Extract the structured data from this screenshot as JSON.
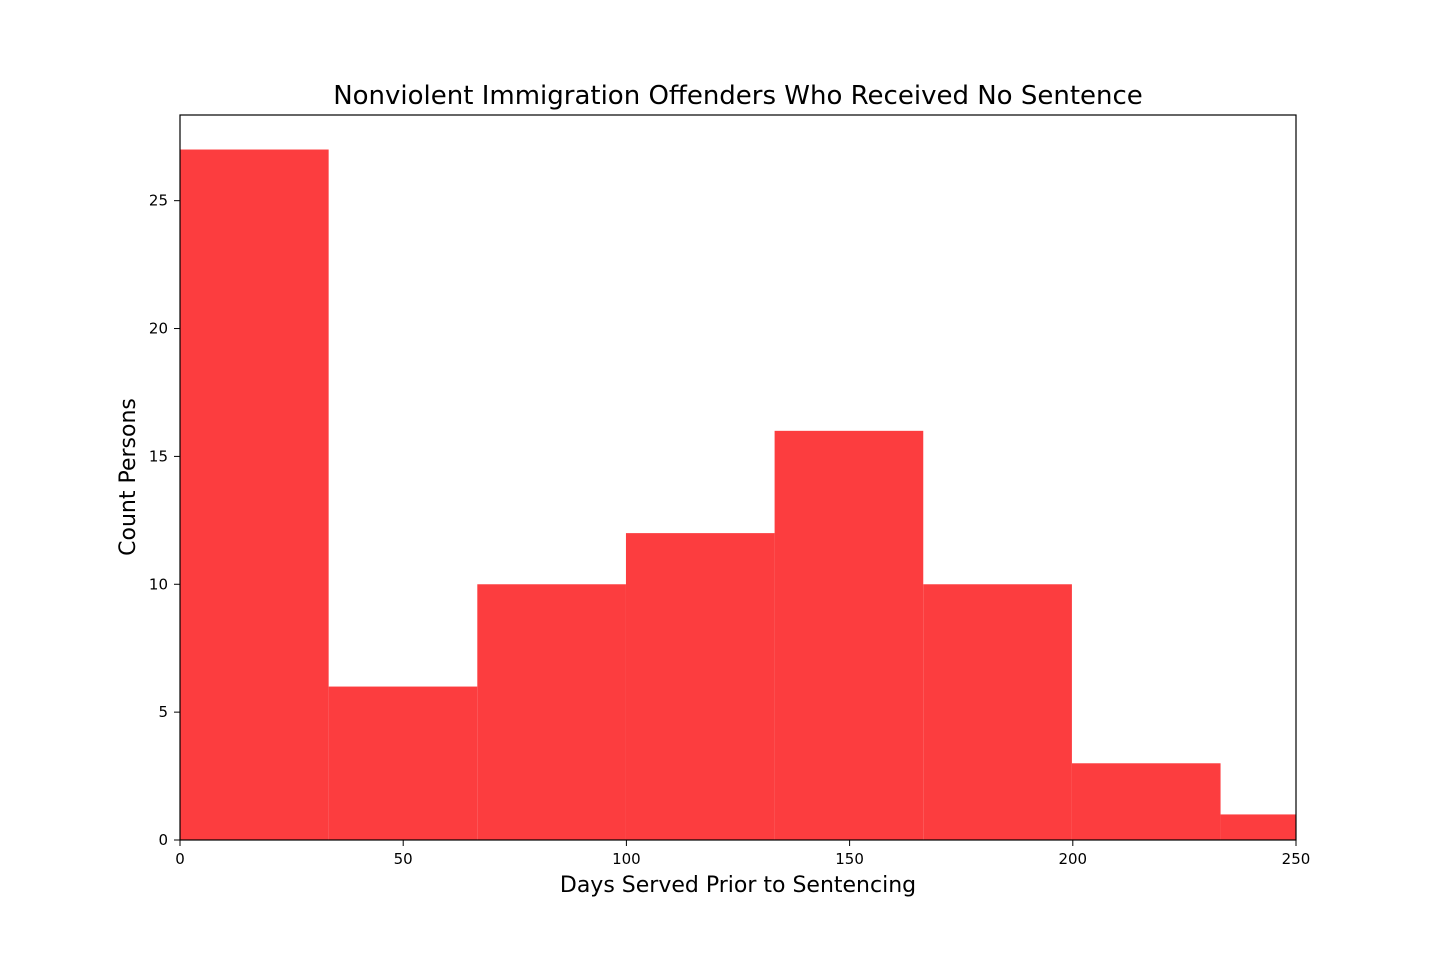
{
  "chart_data": {
    "type": "bar",
    "subtype": "histogram",
    "title": "Nonviolent Immigration Offenders Who Received No Sentence",
    "xlabel": "Days Served Prior to Sentencing",
    "ylabel": "Count Persons",
    "xlim": [
      0,
      250
    ],
    "ylim": [
      0,
      28.35
    ],
    "xticks": [
      0,
      50,
      100,
      150,
      200,
      250
    ],
    "yticks": [
      0,
      5,
      10,
      15,
      20,
      25
    ],
    "bin_edges": [
      0,
      33.3,
      66.6,
      99.9,
      133.2,
      166.5,
      199.8,
      233.1,
      266.4
    ],
    "values": [
      27,
      6,
      10,
      12,
      16,
      10,
      3,
      1
    ],
    "bar_color": "#fc3d3f",
    "grid": false,
    "legend": "none"
  }
}
